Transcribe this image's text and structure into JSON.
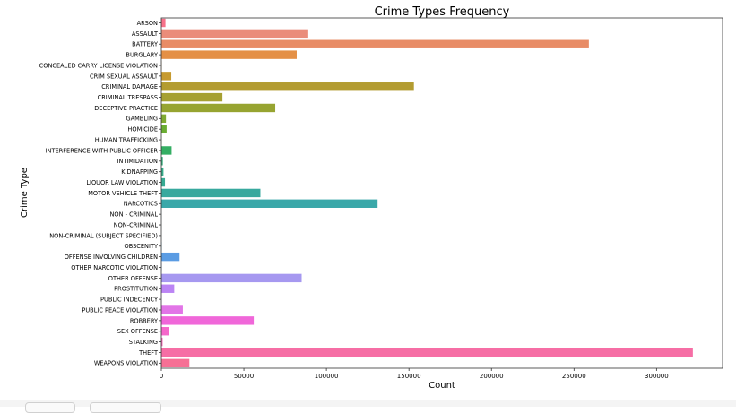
{
  "chart_data": {
    "type": "bar",
    "orientation": "horizontal",
    "title": "Crime Types Frequency",
    "xlabel": "Count",
    "ylabel": "Crime Type",
    "xlim": [
      0,
      340000
    ],
    "x_ticks": [
      0,
      50000,
      100000,
      150000,
      200000,
      250000,
      300000
    ],
    "grid": false,
    "categories": [
      "ARSON",
      "ASSAULT",
      "BATTERY",
      "BURGLARY",
      "CONCEALED CARRY LICENSE VIOLATION",
      "CRIM SEXUAL ASSAULT",
      "CRIMINAL DAMAGE",
      "CRIMINAL TRESPASS",
      "DECEPTIVE PRACTICE",
      "GAMBLING",
      "HOMICIDE",
      "HUMAN TRAFFICKING",
      "INTERFERENCE WITH PUBLIC OFFICER",
      "INTIMIDATION",
      "KIDNAPPING",
      "LIQUOR LAW VIOLATION",
      "MOTOR VEHICLE THEFT",
      "NARCOTICS",
      "NON - CRIMINAL",
      "NON-CRIMINAL",
      "NON-CRIMINAL (SUBJECT SPECIFIED)",
      "OBSCENITY",
      "OFFENSE INVOLVING CHILDREN",
      "OTHER NARCOTIC VIOLATION",
      "OTHER OFFENSE",
      "PROSTITUTION",
      "PUBLIC INDECENCY",
      "PUBLIC PEACE VIOLATION",
      "ROBBERY",
      "SEX OFFENSE",
      "STALKING",
      "THEFT",
      "WEAPONS VIOLATION"
    ],
    "values": [
      2500,
      89000,
      259000,
      82000,
      150,
      6000,
      153000,
      37000,
      69000,
      2800,
      3200,
      80,
      6200,
      900,
      1300,
      2200,
      60000,
      131000,
      50,
      30,
      10,
      150,
      11000,
      200,
      85000,
      7800,
      60,
      13000,
      56000,
      4800,
      800,
      322000,
      17000
    ],
    "colors": [
      "#f77189",
      "#ea8c7a",
      "#e88c66",
      "#e49046",
      "#d49534",
      "#c69a30",
      "#b39c31",
      "#a6a032",
      "#97a431",
      "#80aa31",
      "#6aad32",
      "#50b131",
      "#34ae63",
      "#35ac7b",
      "#36ab89",
      "#37aa93",
      "#38a99e",
      "#3aa8a9",
      "#3ba6b2",
      "#3da5bc",
      "#3ea3c8",
      "#41a0d9",
      "#5b9ce3",
      "#7e98e6",
      "#a698f0",
      "#bb84f4",
      "#cf7ef4",
      "#e275e7",
      "#f067d9",
      "#f568ca",
      "#f66cb8",
      "#f66ea5",
      "#f67095"
    ]
  }
}
